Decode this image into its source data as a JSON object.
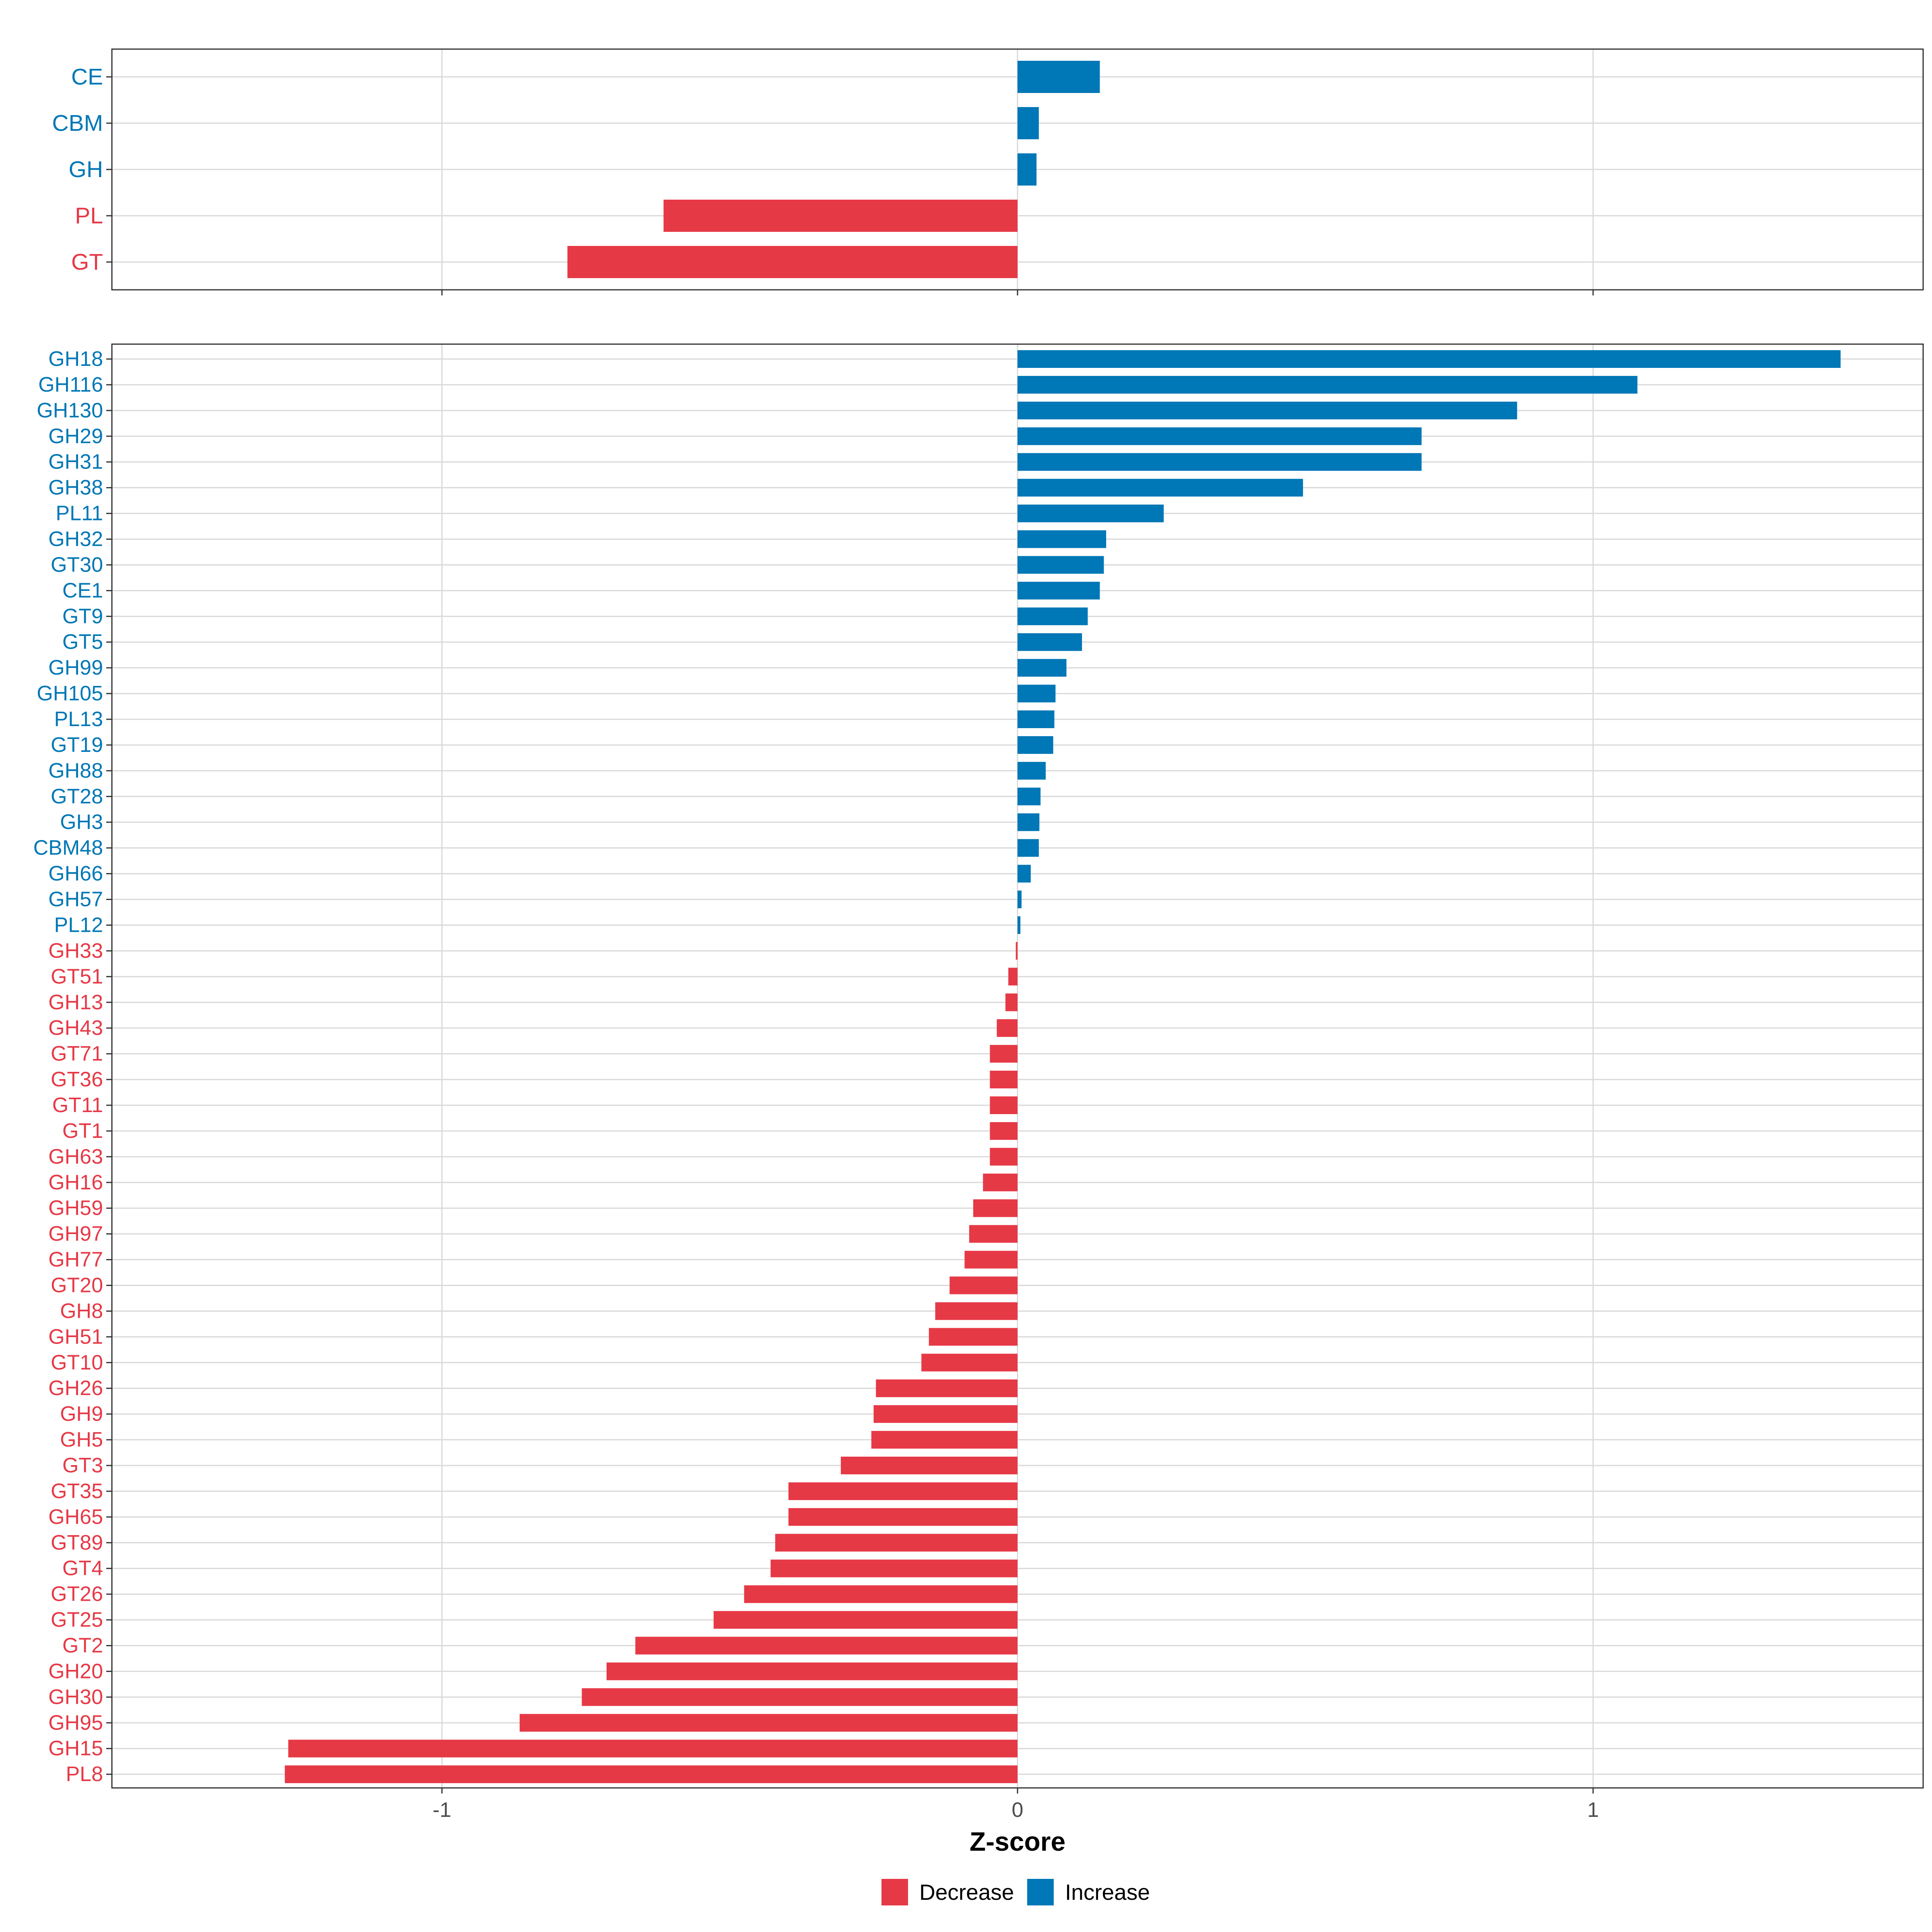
{
  "colors": {
    "decrease": "#E63946",
    "increase": "#0077B6",
    "grid": "#D9D9D9",
    "panel_border": "#333333",
    "axis_text": "#4D4D4D",
    "title_text": "#000000"
  },
  "chart_data": [
    {
      "type": "bar",
      "orientation": "horizontal",
      "panel": "family",
      "xlim": [
        -1.57,
        1.57
      ],
      "x_ticks": [
        -1,
        0,
        1
      ],
      "grid": true,
      "bars": [
        {
          "label": "CE",
          "value": 0.143,
          "direction": "Increase"
        },
        {
          "label": "CBM",
          "value": 0.037,
          "direction": "Increase"
        },
        {
          "label": "GH",
          "value": 0.033,
          "direction": "Increase"
        },
        {
          "label": "PL",
          "value": -0.615,
          "direction": "Decrease"
        },
        {
          "label": "GT",
          "value": -0.782,
          "direction": "Decrease"
        }
      ]
    },
    {
      "type": "bar",
      "orientation": "horizontal",
      "panel": "subfamily",
      "xlim": [
        -1.57,
        1.57
      ],
      "x_ticks": [
        -1,
        0,
        1
      ],
      "x_tick_labels": [
        "-1",
        "0",
        "1"
      ],
      "xlabel": "Z-score",
      "grid": true,
      "bars": [
        {
          "label": "GH18",
          "value": 1.43,
          "direction": "Increase"
        },
        {
          "label": "GH116",
          "value": 1.077,
          "direction": "Increase"
        },
        {
          "label": "GH130",
          "value": 0.868,
          "direction": "Increase"
        },
        {
          "label": "GH29",
          "value": 0.702,
          "direction": "Increase"
        },
        {
          "label": "GH31",
          "value": 0.702,
          "direction": "Increase"
        },
        {
          "label": "GH38",
          "value": 0.496,
          "direction": "Increase"
        },
        {
          "label": "PL11",
          "value": 0.254,
          "direction": "Increase"
        },
        {
          "label": "GH32",
          "value": 0.154,
          "direction": "Increase"
        },
        {
          "label": "GT30",
          "value": 0.15,
          "direction": "Increase"
        },
        {
          "label": "CE1",
          "value": 0.143,
          "direction": "Increase"
        },
        {
          "label": "GT9",
          "value": 0.122,
          "direction": "Increase"
        },
        {
          "label": "GT5",
          "value": 0.112,
          "direction": "Increase"
        },
        {
          "label": "GH99",
          "value": 0.085,
          "direction": "Increase"
        },
        {
          "label": "GH105",
          "value": 0.066,
          "direction": "Increase"
        },
        {
          "label": "PL13",
          "value": 0.064,
          "direction": "Increase"
        },
        {
          "label": "GT19",
          "value": 0.062,
          "direction": "Increase"
        },
        {
          "label": "GH88",
          "value": 0.049,
          "direction": "Increase"
        },
        {
          "label": "GT28",
          "value": 0.04,
          "direction": "Increase"
        },
        {
          "label": "GH3",
          "value": 0.038,
          "direction": "Increase"
        },
        {
          "label": "CBM48",
          "value": 0.037,
          "direction": "Increase"
        },
        {
          "label": "GH66",
          "value": 0.023,
          "direction": "Increase"
        },
        {
          "label": "GH57",
          "value": 0.007,
          "direction": "Increase"
        },
        {
          "label": "PL12",
          "value": 0.005,
          "direction": "Increase"
        },
        {
          "label": "GH33",
          "value": -0.003,
          "direction": "Decrease"
        },
        {
          "label": "GT51",
          "value": -0.016,
          "direction": "Decrease"
        },
        {
          "label": "GH13",
          "value": -0.021,
          "direction": "Decrease"
        },
        {
          "label": "GH43",
          "value": -0.036,
          "direction": "Decrease"
        },
        {
          "label": "GT71",
          "value": -0.048,
          "direction": "Decrease"
        },
        {
          "label": "GT36",
          "value": -0.048,
          "direction": "Decrease"
        },
        {
          "label": "GT11",
          "value": -0.048,
          "direction": "Decrease"
        },
        {
          "label": "GT1",
          "value": -0.048,
          "direction": "Decrease"
        },
        {
          "label": "GH63",
          "value": -0.048,
          "direction": "Decrease"
        },
        {
          "label": "GH16",
          "value": -0.06,
          "direction": "Decrease"
        },
        {
          "label": "GH59",
          "value": -0.077,
          "direction": "Decrease"
        },
        {
          "label": "GH97",
          "value": -0.084,
          "direction": "Decrease"
        },
        {
          "label": "GH77",
          "value": -0.092,
          "direction": "Decrease"
        },
        {
          "label": "GT20",
          "value": -0.118,
          "direction": "Decrease"
        },
        {
          "label": "GH8",
          "value": -0.143,
          "direction": "Decrease"
        },
        {
          "label": "GH51",
          "value": -0.154,
          "direction": "Decrease"
        },
        {
          "label": "GT10",
          "value": -0.167,
          "direction": "Decrease"
        },
        {
          "label": "GH26",
          "value": -0.246,
          "direction": "Decrease"
        },
        {
          "label": "GH9",
          "value": -0.25,
          "direction": "Decrease"
        },
        {
          "label": "GH5",
          "value": -0.254,
          "direction": "Decrease"
        },
        {
          "label": "GT3",
          "value": -0.307,
          "direction": "Decrease"
        },
        {
          "label": "GT35",
          "value": -0.398,
          "direction": "Decrease"
        },
        {
          "label": "GH65",
          "value": -0.398,
          "direction": "Decrease"
        },
        {
          "label": "GT89",
          "value": -0.421,
          "direction": "Decrease"
        },
        {
          "label": "GT4",
          "value": -0.429,
          "direction": "Decrease"
        },
        {
          "label": "GT26",
          "value": -0.475,
          "direction": "Decrease"
        },
        {
          "label": "GT25",
          "value": -0.528,
          "direction": "Decrease"
        },
        {
          "label": "GT2",
          "value": -0.664,
          "direction": "Decrease"
        },
        {
          "label": "GH20",
          "value": -0.714,
          "direction": "Decrease"
        },
        {
          "label": "GH30",
          "value": -0.757,
          "direction": "Decrease"
        },
        {
          "label": "GH95",
          "value": -0.865,
          "direction": "Decrease"
        },
        {
          "label": "GH15",
          "value": -1.267,
          "direction": "Decrease"
        },
        {
          "label": "PL8",
          "value": -1.273,
          "direction": "Decrease"
        }
      ]
    }
  ],
  "legend": {
    "position": "bottom",
    "items": [
      {
        "label": "Decrease",
        "key": "decrease"
      },
      {
        "label": "Increase",
        "key": "increase"
      }
    ]
  }
}
